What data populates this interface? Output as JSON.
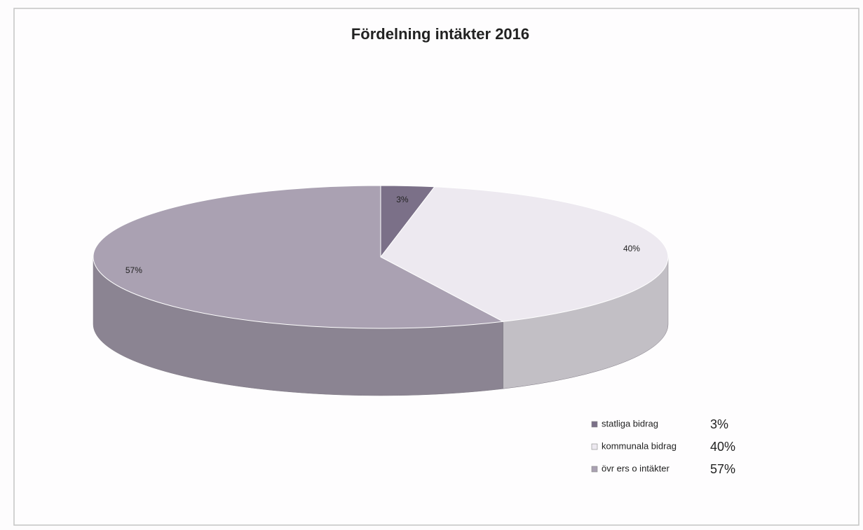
{
  "chart_data": {
    "type": "pie",
    "title": "Fördelning intäkter 2016",
    "categories": [
      "statliga bidrag",
      "kommunala bidrag",
      "övr ers o intäkter"
    ],
    "values": [
      3,
      40,
      57
    ],
    "value_labels": [
      "3%",
      "40%",
      "57%"
    ],
    "colors": [
      "#7b7088",
      "#ede9f0",
      "#aaa1b2"
    ],
    "legend": "bottom-right"
  }
}
